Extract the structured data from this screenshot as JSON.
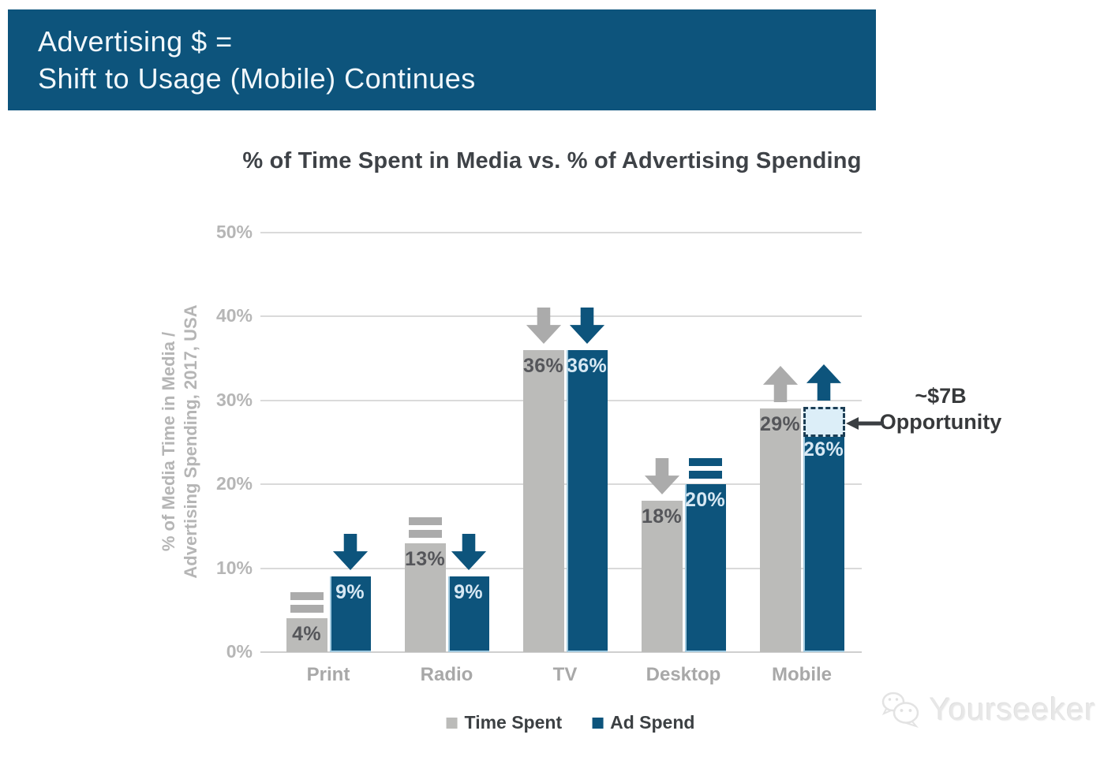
{
  "banner": {
    "line1": "Advertising $ =",
    "line2": "Shift to Usage (Mobile) Continues",
    "bg_color": "#0D547C",
    "text_color": "#F2F8FC"
  },
  "chart_data": {
    "type": "bar",
    "title": "% of Time Spent in Media vs. % of Advertising Spending",
    "ylabel_lines": [
      "% of Media Time in Media /",
      "Advertising Spending, 2017, USA"
    ],
    "categories": [
      "Print",
      "Radio",
      "TV",
      "Desktop",
      "Mobile"
    ],
    "series": [
      {
        "name": "Time Spent",
        "color": "#BBBBB9",
        "trend_color": "#ABABAB",
        "label_color": "#55565A",
        "values": [
          4,
          13,
          36,
          18,
          29
        ],
        "value_labels": [
          "4%",
          "13%",
          "36%",
          "18%",
          "29%"
        ],
        "trends": [
          "equal",
          "equal",
          "down",
          "down",
          "up"
        ]
      },
      {
        "name": "Ad Spend",
        "color": "#0D547C",
        "trend_color": "#0D547C",
        "label_color": "#D7E8F3",
        "edge_color": "#A3CBE0",
        "values": [
          9,
          9,
          36,
          20,
          26
        ],
        "value_labels": [
          "9%",
          "9%",
          "36%",
          "20%",
          "26%"
        ],
        "trends": [
          "down",
          "down",
          "down",
          "equal",
          "up"
        ]
      }
    ],
    "tick_labels": [
      "50%",
      "40%",
      "30%",
      "20%",
      "10%",
      "0%"
    ],
    "tick_values": [
      50,
      40,
      30,
      20,
      10,
      0
    ],
    "ylim": [
      0,
      50
    ],
    "grid": true,
    "grid_color": "#DADADA",
    "legend_position": "bottom",
    "annotation": {
      "line1": "~$7B",
      "line2": "Opportunity",
      "category": "Mobile",
      "series": "Ad Spend",
      "from_value": 26,
      "to_value": 29,
      "box_fill": "#DCEEF8",
      "box_border": "#1C3E55",
      "arrow_color": "#3A3E42"
    }
  },
  "legend": [
    {
      "label": "Time Spent",
      "color": "#BBBBB9"
    },
    {
      "label": "Ad Spend",
      "color": "#0D547C"
    }
  ],
  "watermark": {
    "text": "Yourseeker"
  }
}
